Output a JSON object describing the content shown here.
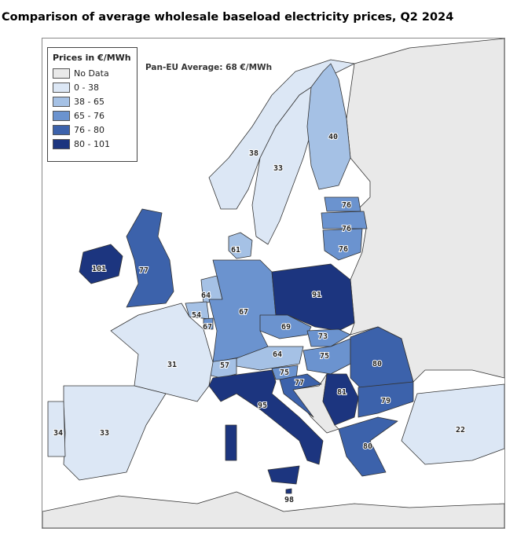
{
  "title": "Comparison of average wholesale baseload electricity prices, Q2 2024",
  "average_label": "Pan-EU Average: 68 €/MWh",
  "legend": {
    "title": "Prices in €/MWh",
    "items": [
      {
        "label": "No Data",
        "color": "#e9e9e9"
      },
      {
        "label": "0 - 38",
        "color": "#dce7f5",
        "min": 0,
        "max": 38
      },
      {
        "label": "38 - 65",
        "color": "#a5c1e5",
        "min": 38,
        "max": 65
      },
      {
        "label": "65 - 76",
        "color": "#6b93cf",
        "min": 65,
        "max": 76
      },
      {
        "label": "76 - 80",
        "color": "#3c62ab",
        "min": 76,
        "max": 80
      },
      {
        "label": "80 - 101",
        "color": "#1c357f",
        "min": 80,
        "max": 101
      }
    ]
  },
  "countries": {
    "norway": "38",
    "sweden": "33",
    "finland": "40",
    "estonia": "76",
    "latvia": "76",
    "lithuania": "76",
    "denmark": "61",
    "ireland": "101",
    "uk": "77",
    "netherlands": "64",
    "belgium": "54",
    "luxembourg": "67",
    "germany": "67",
    "poland": "91",
    "czechia": "69",
    "slovakia": "73",
    "austria": "64",
    "hungary": "75",
    "switzerland": "57",
    "slovenia": "75",
    "croatia": "77",
    "italy": "95",
    "serbia": "81",
    "romania": "80",
    "bulgaria": "79",
    "greece": "80",
    "france": "31",
    "spain": "33",
    "portugal": "34",
    "turkey": "22",
    "malta": "98"
  }
}
